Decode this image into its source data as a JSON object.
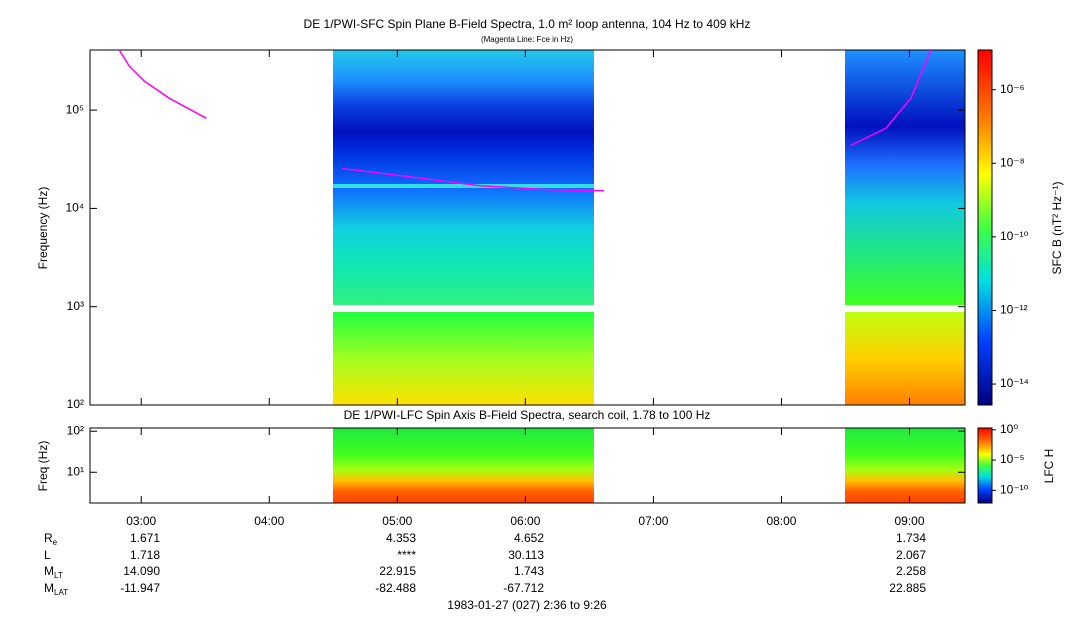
{
  "chart_data": [
    {
      "type": "spectrogram",
      "title": "DE 1/PWI-SFC  Spin Plane B-Field Spectra, 1.0 m² loop antenna, 104 Hz to 409 kHz",
      "subtitle": "(Magenta Line: Fce in Hz)",
      "y_label": "Frequency (Hz)",
      "log_y": true,
      "xlim": [
        2.6,
        9.4333
      ],
      "ylim": [
        100,
        409000
      ],
      "yticks": [
        {
          "value": 100,
          "label": "10²"
        },
        {
          "value": 1000,
          "label": "10³"
        },
        {
          "value": 10000,
          "label": "10⁴"
        },
        {
          "value": 100000,
          "label": "10⁵"
        }
      ],
      "series": [
        {
          "color": "#ff00ff",
          "x": [
            2.828,
            2.906,
            3.023,
            3.219,
            3.509,
            null,
            4.571,
            5.096,
            5.644,
            6.192,
            6.615,
            null,
            8.541,
            8.815,
            9.011,
            9.168
          ],
          "values": [
            409000,
            281000,
            198000,
            132000,
            82600,
            null,
            25400,
            21000,
            17000,
            15500,
            15100,
            null,
            43700,
            65300,
            132000,
            409000
          ]
        }
      ],
      "colorbar": {
        "label": "SFC B (nT² Hz⁻¹)",
        "log": true,
        "lim": [
          2.7e-15,
          1.2e-05
        ],
        "ticks": [
          {
            "value": 1e-14,
            "label": "10⁻¹⁴"
          },
          {
            "value": 1e-12,
            "label": "10⁻¹²"
          },
          {
            "value": 1e-10,
            "label": "10⁻¹⁰"
          },
          {
            "value": 1e-08,
            "label": "10⁻⁸"
          },
          {
            "value": 1e-06,
            "label": "10⁻⁶"
          }
        ]
      }
    },
    {
      "type": "spectrogram",
      "title": "DE 1/PWI-LFC  Spin Axis B-Field Spectra, search coil, 1.78 to 100 Hz",
      "y_label": "Freq (Hz)",
      "log_y": true,
      "xlim": [
        2.6,
        9.4333
      ],
      "ylim": [
        1.78,
        120
      ],
      "yticks": [
        {
          "value": 10,
          "label": "10¹"
        },
        {
          "value": 100,
          "label": "10²"
        }
      ],
      "xticks": [
        {
          "value": 3,
          "label": "03:00"
        },
        {
          "value": 4,
          "label": "04:00"
        },
        {
          "value": 5,
          "label": "05:00"
        },
        {
          "value": 6,
          "label": "06:00"
        },
        {
          "value": 7,
          "label": "07:00"
        },
        {
          "value": 8,
          "label": "08:00"
        },
        {
          "value": 9,
          "label": "09:00"
        }
      ],
      "colorbar": {
        "label": "LFC H",
        "log": true,
        "lim": [
          8e-13,
          2
        ],
        "ticks": [
          {
            "value": 1e-10,
            "label": "10⁻¹⁰"
          },
          {
            "value": 1e-05,
            "label": "10⁻⁵"
          },
          {
            "value": 1,
            "label": "10⁰"
          }
        ]
      }
    }
  ],
  "ephemeris": {
    "rows": [
      {
        "label": "R",
        "sub": "e",
        "values": [
          "1.671",
          "4.353",
          "4.652",
          "1.734"
        ]
      },
      {
        "label": "L",
        "values": [
          "1.718",
          "****",
          "30.113",
          "2.067"
        ]
      },
      {
        "label": "M",
        "sub": "LT",
        "values": [
          "14.090",
          "22.915",
          "1.743",
          "2.258"
        ]
      },
      {
        "label": "M",
        "sub": "LAT",
        "values": [
          "-11.947",
          "-82.488",
          "-67.712",
          "22.885"
        ]
      }
    ]
  },
  "footer": "1983-01-27 (027) 2:36 to 9:26"
}
